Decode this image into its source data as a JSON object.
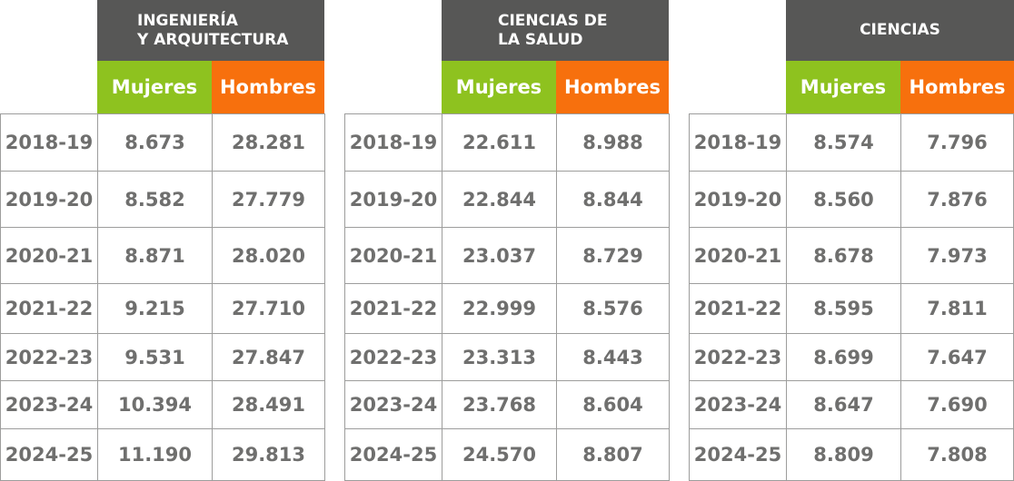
{
  "chart_data": {
    "type": "table",
    "years": [
      "2018-19",
      "2019-20",
      "2020-21",
      "2021-22",
      "2022-23",
      "2023-24",
      "2024-25"
    ],
    "columns": [
      "Mujeres",
      "Hombres"
    ],
    "colors": {
      "header": "#575756",
      "mujeres": "#8ec21f",
      "hombres": "#f7700d",
      "text": "#6f6f6e",
      "border": "#9d9d9c"
    },
    "tables": [
      {
        "title_lines": [
          "INGENIERÍA",
          "Y ARQUITECTURA"
        ],
        "mujeres": [
          "8.673",
          "8.582",
          "8.871",
          "9.215",
          "9.531",
          "10.394",
          "11.190"
        ],
        "hombres": [
          "28.281",
          "27.779",
          "28.020",
          "27.710",
          "27.847",
          "28.491",
          "29.813"
        ]
      },
      {
        "title_lines": [
          "CIENCIAS DE",
          "LA SALUD"
        ],
        "mujeres": [
          "22.611",
          "22.844",
          "23.037",
          "22.999",
          "23.313",
          "23.768",
          "24.570"
        ],
        "hombres": [
          "8.988",
          "8.844",
          "8.729",
          "8.576",
          "8.443",
          "8.604",
          "8.807"
        ]
      },
      {
        "title_lines": [
          "CIENCIAS"
        ],
        "mujeres": [
          "8.574",
          "8.560",
          "8.678",
          "8.595",
          "8.699",
          "8.647",
          "8.809"
        ],
        "hombres": [
          "7.796",
          "7.876",
          "7.973",
          "7.811",
          "7.647",
          "7.690",
          "7.808"
        ]
      }
    ]
  }
}
